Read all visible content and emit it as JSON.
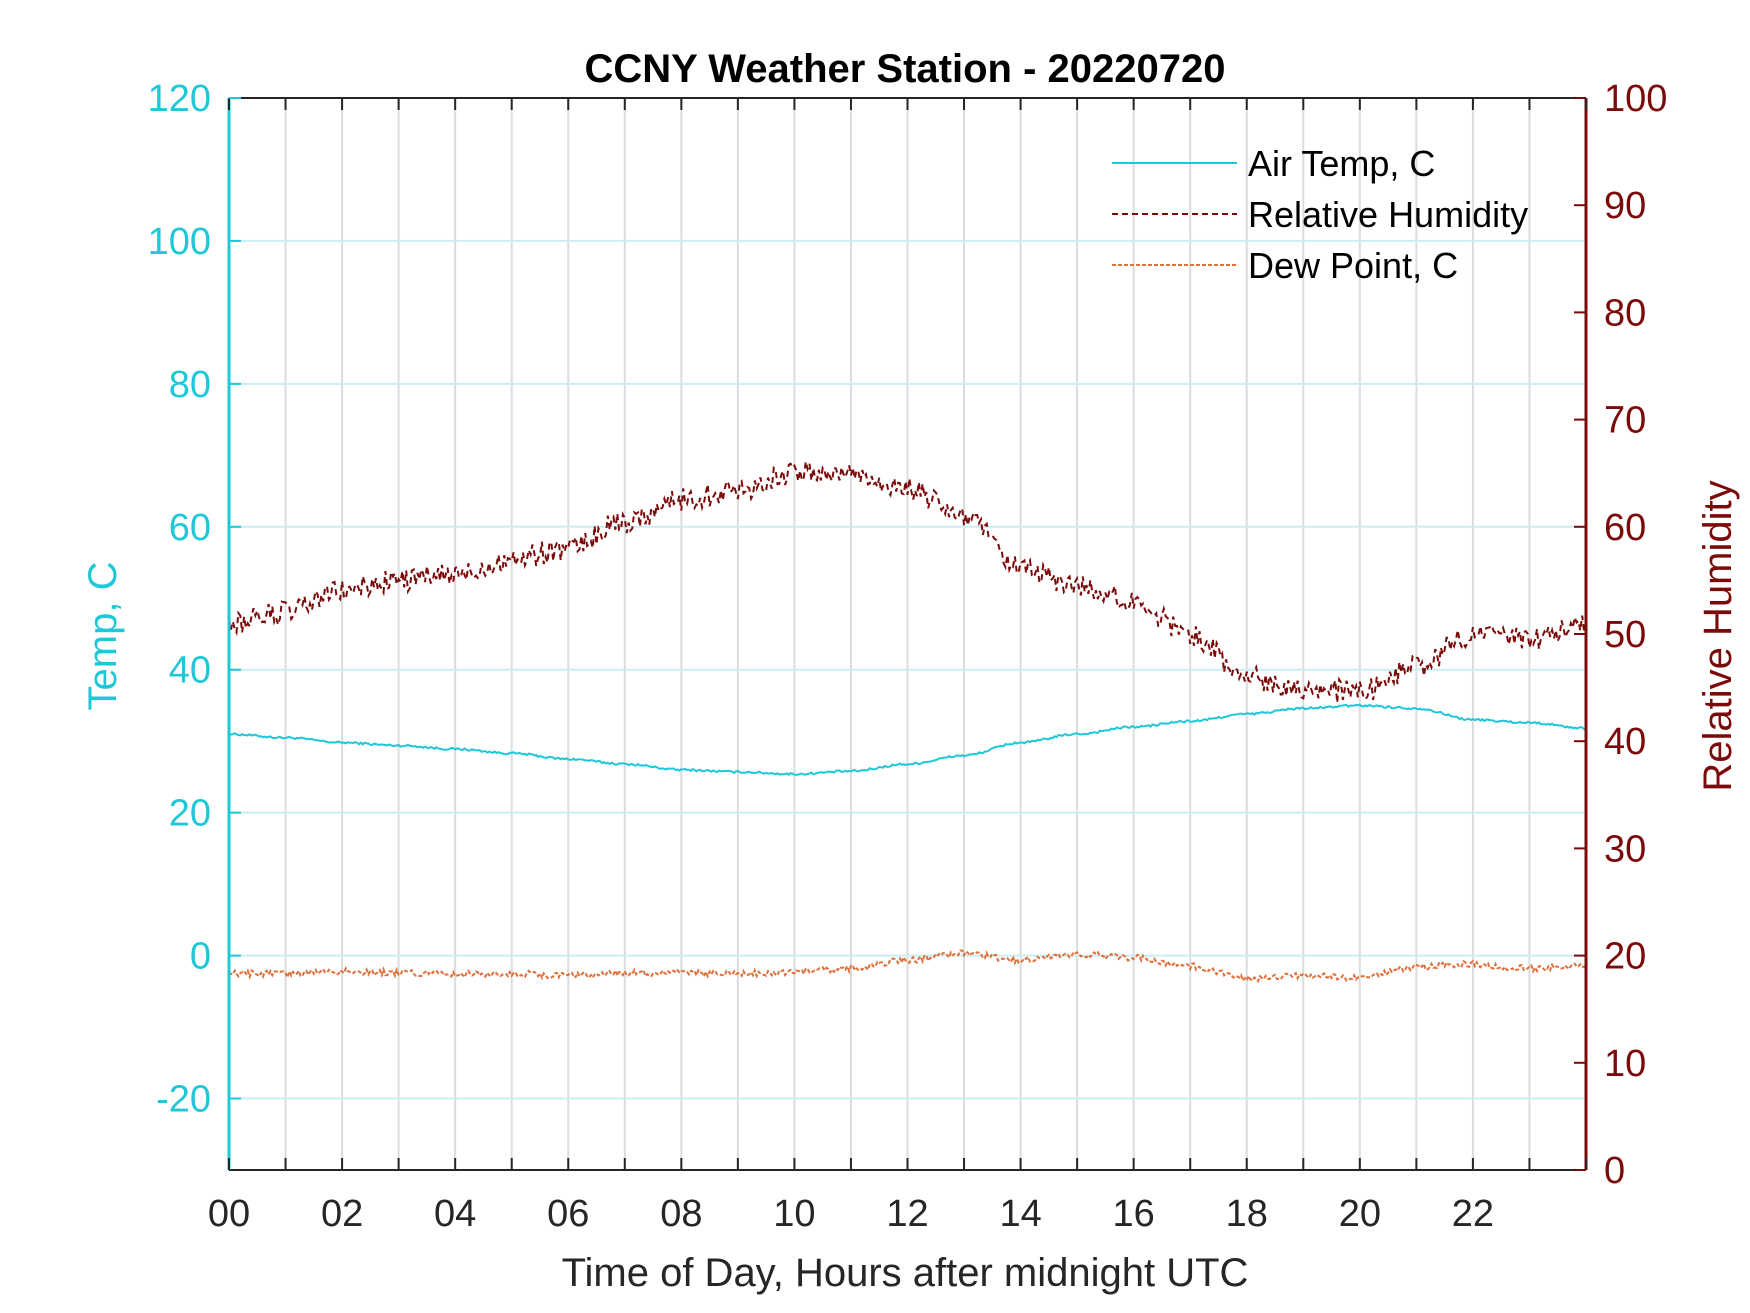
{
  "chart_data": {
    "type": "line",
    "title": "CCNY Weather Station - 20220720",
    "xlabel": "Time of Day, Hours after midnight UTC",
    "ylabel_left": "Temp, C",
    "ylabel_right": "Relative Humidity",
    "xlim": [
      0,
      24
    ],
    "ylim_left": [
      -30,
      120
    ],
    "ylim_right": [
      0,
      100
    ],
    "x_ticks": [
      0,
      2,
      4,
      6,
      8,
      10,
      12,
      14,
      16,
      18,
      20,
      22
    ],
    "x_tick_labels": [
      "00",
      "02",
      "04",
      "06",
      "08",
      "10",
      "12",
      "14",
      "16",
      "18",
      "20",
      "22"
    ],
    "y_left_ticks": [
      -20,
      0,
      20,
      40,
      60,
      80,
      100,
      120
    ],
    "y_left_tick_labels": [
      "-20",
      "0",
      "20",
      "40",
      "60",
      "80",
      "100",
      "120"
    ],
    "y_right_ticks": [
      0,
      10,
      20,
      30,
      40,
      50,
      60,
      70,
      80,
      90,
      100
    ],
    "y_right_tick_labels": [
      "0",
      "10",
      "20",
      "30",
      "40",
      "50",
      "60",
      "70",
      "80",
      "90",
      "100"
    ],
    "grid": "on",
    "legend_position": "top-right",
    "colors": {
      "left_axis": "#1fc8d8",
      "right_axis": "#7b0a0a",
      "air_temp": "#1fc8d8",
      "humidity": "#7b0a0a",
      "dew_point": "#e0703a"
    },
    "series": [
      {
        "name": "Air Temp, C",
        "axis": "left",
        "style": "solid",
        "x": [
          0,
          1,
          2,
          3,
          4,
          5,
          6,
          7,
          8,
          9,
          10,
          11,
          12,
          13,
          14,
          15,
          16,
          17,
          18,
          19,
          20,
          21,
          22,
          23,
          24
        ],
        "values": [
          31,
          30.5,
          29.8,
          29.4,
          28.9,
          28.3,
          27.5,
          26.8,
          26,
          25.7,
          25.4,
          25.8,
          26.8,
          28,
          29.8,
          31,
          32,
          32.8,
          33.8,
          34.6,
          35,
          34.6,
          33,
          32.6,
          31.8
        ]
      },
      {
        "name": "Relative Humidity",
        "axis": "right",
        "style": "dashed",
        "x": [
          0,
          1,
          2,
          3,
          4,
          5,
          6,
          7,
          8,
          9,
          10,
          11,
          12,
          13,
          14,
          15,
          16,
          17,
          18,
          19,
          20,
          21,
          22,
          23,
          24
        ],
        "values": [
          51,
          52,
          54,
          55,
          55.5,
          57,
          58,
          60.5,
          62.5,
          63.5,
          65,
          65,
          63.5,
          61,
          56,
          54.5,
          53,
          50,
          46,
          45,
          44.5,
          47,
          50,
          49.5,
          51
        ]
      },
      {
        "name": "Dew Point, C",
        "axis": "left",
        "style": "dashed",
        "x": [
          0,
          1,
          2,
          3,
          4,
          5,
          6,
          7,
          8,
          9,
          10,
          11,
          12,
          13,
          14,
          15,
          16,
          17,
          18,
          19,
          20,
          21,
          22,
          23,
          24
        ],
        "values": [
          -2.5,
          -2.6,
          -2.2,
          -2.4,
          -2.6,
          -2.5,
          -2.8,
          -2.4,
          -2.5,
          -2.5,
          -2.3,
          -1.8,
          -0.6,
          0.3,
          -0.6,
          0.2,
          -0.3,
          -1.5,
          -3.2,
          -2.8,
          -3.2,
          -1.6,
          -1.2,
          -1.8,
          -1.5
        ]
      }
    ]
  }
}
